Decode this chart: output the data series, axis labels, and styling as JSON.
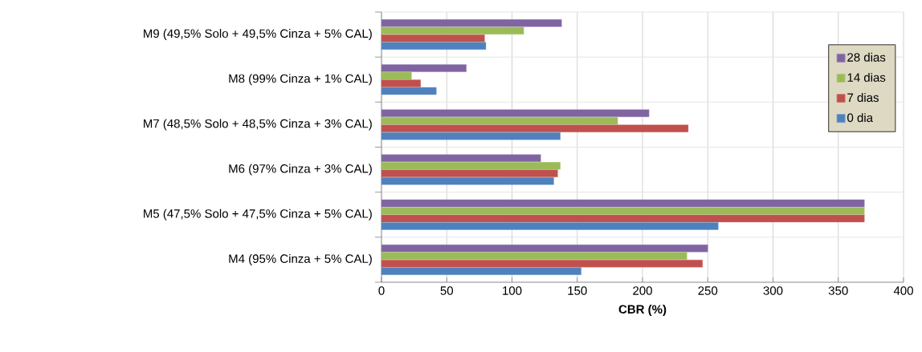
{
  "chart_data": {
    "type": "bar",
    "orientation": "horizontal",
    "xlabel": "CBR (%)",
    "categories": [
      "M9 (49,5% Solo + 49,5% Cinza + 5% CAL)",
      "M8 (99% Cinza + 1% CAL)",
      "M7 (48,5% Solo + 48,5% Cinza + 3% CAL)",
      "M6 (97% Cinza + 3% CAL)",
      "M5 (47,5% Solo + 47,5% Cinza + 5% CAL)",
      "M4 (95% Cinza + 5% CAL)"
    ],
    "series": [
      {
        "name": "28 dias",
        "color": "#8064a2",
        "values": [
          138,
          65,
          205,
          122,
          370,
          250
        ]
      },
      {
        "name": "14 dias",
        "color": "#9bbb59",
        "values": [
          109,
          23,
          181,
          137,
          370,
          234
        ]
      },
      {
        "name": "7 dias",
        "color": "#c0504d",
        "values": [
          79,
          30,
          235,
          135,
          370,
          246
        ]
      },
      {
        "name": "0 dia",
        "color": "#4f81bd",
        "values": [
          80,
          42,
          137,
          132,
          258,
          153
        ]
      }
    ],
    "xlim": [
      0,
      400
    ],
    "xticks": [
      0,
      50,
      100,
      150,
      200,
      250,
      300,
      350,
      400
    ],
    "grid": true,
    "legend": "top right"
  }
}
